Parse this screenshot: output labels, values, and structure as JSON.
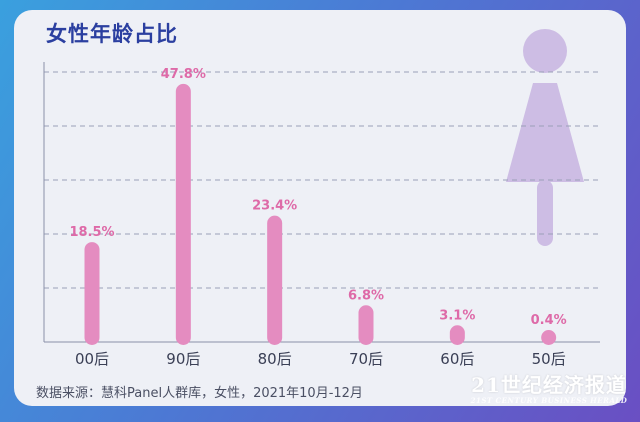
{
  "title": "女性年龄占比",
  "source": "数据来源：慧科Panel人群库，女性，2021年10月-12月",
  "brand": {
    "main": "21世纪经济报道",
    "sub": "21ST CENTURY BUSINESS HERALD"
  },
  "colors": {
    "bar": "#e48cc0",
    "label": "#de6aa8",
    "figure": "#cdbde4",
    "title": "#2b3fa0"
  },
  "chart_data": {
    "type": "bar",
    "categories": [
      "00后",
      "90后",
      "80后",
      "70后",
      "60后",
      "50后"
    ],
    "values": [
      18.5,
      47.8,
      23.4,
      6.8,
      3.1,
      0.4
    ],
    "data_labels": [
      "18.5%",
      "47.8%",
      "23.4%",
      "6.8%",
      "3.1%",
      "0.4%"
    ],
    "title": "女性年龄占比",
    "xlabel": "",
    "ylabel": "",
    "ylim": [
      0,
      50
    ],
    "grid": true,
    "legend": "none"
  }
}
